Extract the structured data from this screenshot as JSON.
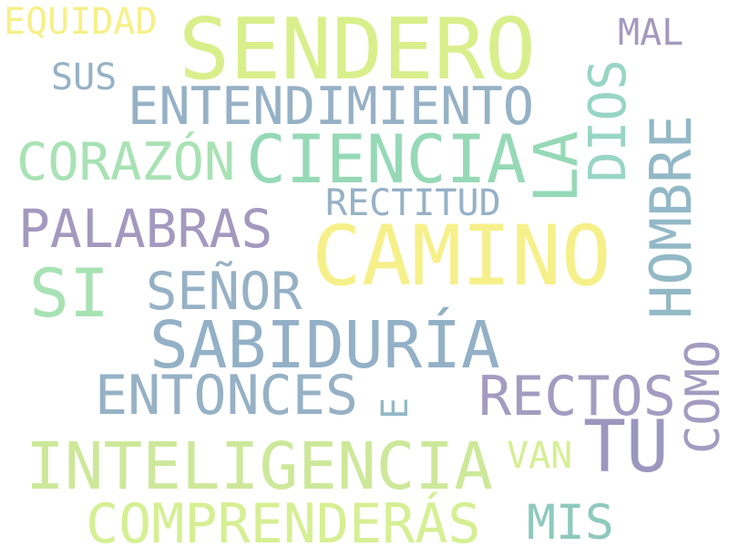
{
  "words": {
    "sendero": {
      "text": "SENDERO",
      "color": "#d9ef8b"
    },
    "camino": {
      "text": "CAMINO",
      "color": "#f6f08a"
    },
    "ciencia": {
      "text": "CIENCIA",
      "color": "#96d9b7"
    },
    "sabiduria": {
      "text": "SABIDURÍA",
      "color": "#93b0c6"
    },
    "inteligencia": {
      "text": "INTELIGENCIA",
      "color": "#cde89a"
    },
    "entendimiento": {
      "text": "ENTENDIMIENTO",
      "color": "#96b1c5"
    },
    "entonces": {
      "text": "ENTONCES",
      "color": "#96b1c5"
    },
    "comprenderas": {
      "text": "COMPRENDERÁS",
      "color": "#d6ef93"
    },
    "palabras": {
      "text": "PALABRAS",
      "color": "#a399bf"
    },
    "corazon": {
      "text": "CORAZÓN",
      "color": "#a8e2b4"
    },
    "hombre": {
      "text": "HOMBRE",
      "color": "#93b8c6"
    },
    "rectos": {
      "text": "RECTOS",
      "color": "#a39cc0"
    },
    "tu": {
      "text": "TU",
      "color": "#9c97be"
    },
    "si": {
      "text": "SI",
      "color": "#a8e2b4"
    },
    "senor": {
      "text": "SEÑOR",
      "color": "#96b1c5"
    },
    "la": {
      "text": "LA",
      "color": "#96d9b7"
    },
    "dios": {
      "text": "DIOS",
      "color": "#98d5c4"
    },
    "como": {
      "text": "COMO",
      "color": "#a39cc0"
    },
    "rectitud": {
      "text": "RECTITUD",
      "color": "#96b1c5"
    },
    "mis": {
      "text": "MIS",
      "color": "#8ec9bd"
    },
    "equidad": {
      "text": "EQUIDAD",
      "color": "#f6f08a"
    },
    "sus": {
      "text": "SUS",
      "color": "#96b1c5"
    },
    "mal": {
      "text": "MAL",
      "color": "#a399bf"
    },
    "van": {
      "text": "VAN",
      "color": "#d6ef93"
    },
    "e": {
      "text": "E",
      "color": "#93b8c6"
    }
  }
}
